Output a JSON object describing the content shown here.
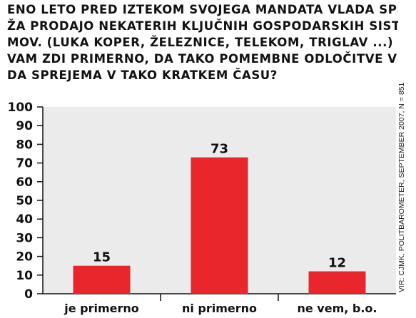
{
  "question": {
    "lines": [
      "ENO LETO PRED IZTEKOM SVOJEGA MANDATA VLADA SPRO-",
      "ŽA PRODAJO NEKATERIH KLJUČNIH GOSPODARSKIH SISTE-",
      "MOV. (LUKA KOPER, ŽELEZNICE, TELEKOM, TRIGLAV ...) SE",
      "VAM ZDI PRIMERNO, DA TAKO POMEMBNE ODLOČITVE VLA-",
      "DA SPREJEMA V TAKO KRATKEM ČASU?"
    ]
  },
  "source": "VIR: CJMK, POLITBAROMETER, SEPTEMBER 2007, N = 851",
  "colors": {
    "bar": "#e8262b",
    "plot_bg": "#ebebeb",
    "axis": "#111111"
  },
  "chart_data": {
    "type": "bar",
    "categories": [
      "je primerno",
      "ni primerno",
      "ne vem, b.o."
    ],
    "values": [
      15,
      73,
      12
    ],
    "ylim": [
      0,
      100
    ],
    "yticks": [
      0,
      10,
      20,
      30,
      40,
      50,
      60,
      70,
      80,
      90,
      100
    ],
    "data_labels": true,
    "grid": false,
    "title": "",
    "xlabel": "",
    "ylabel": ""
  }
}
